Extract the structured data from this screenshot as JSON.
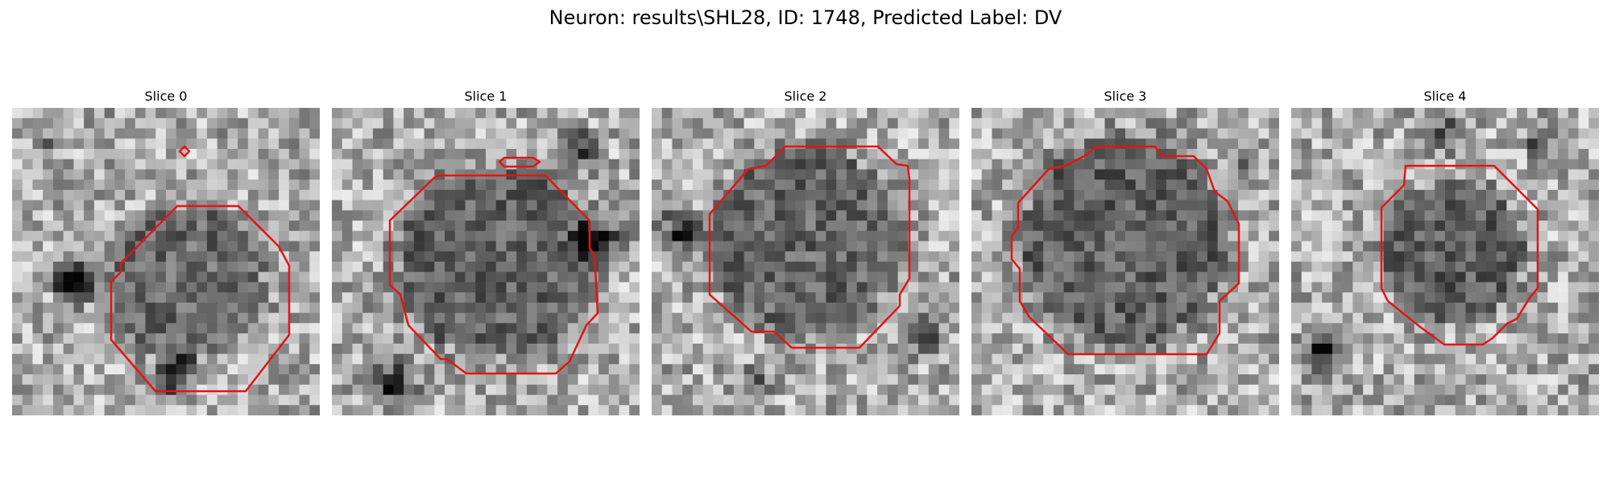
{
  "figure": {
    "title": "Neuron: results\\SHL28, ID: 1748, Predicted Label: DV"
  },
  "panels": [
    {
      "label": "Slice 0"
    },
    {
      "label": "Slice 1"
    },
    {
      "label": "Slice 2"
    },
    {
      "label": "Slice 3"
    },
    {
      "label": "Slice 4"
    }
  ],
  "colors": {
    "contour": "#e41414",
    "background": "#ffffff"
  }
}
